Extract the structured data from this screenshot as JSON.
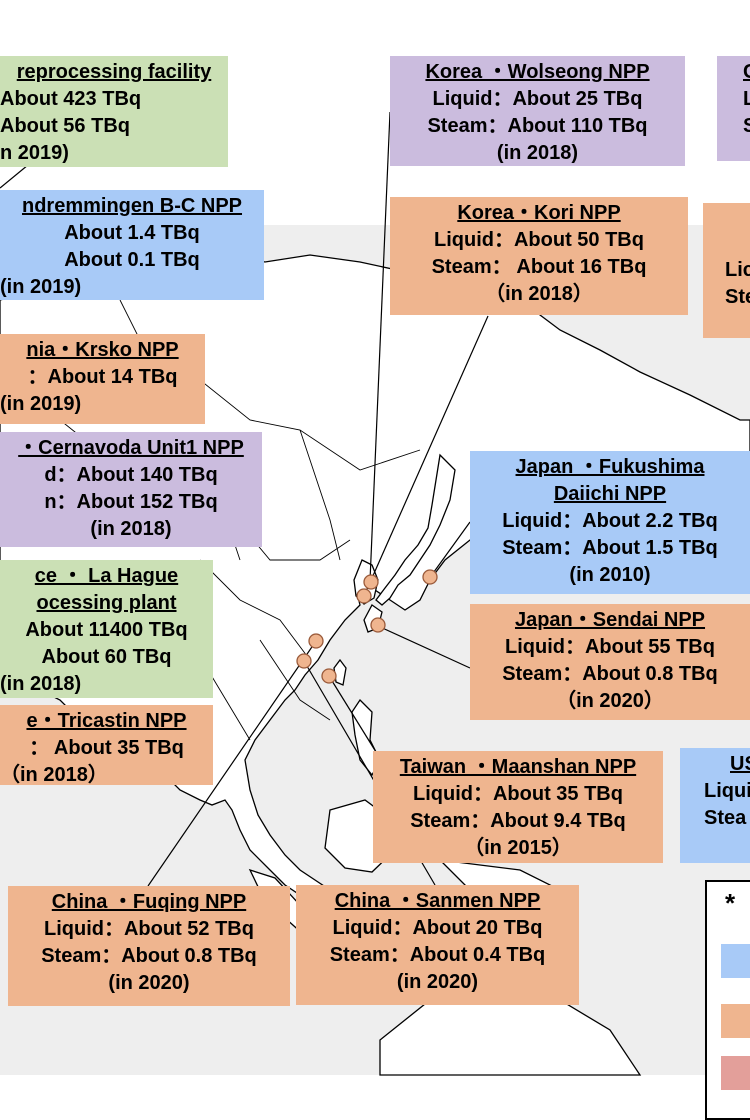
{
  "colors": {
    "purple": "#cbbcde",
    "blue": "#a8caf7",
    "orange": "#efb58f",
    "green": "#cbe0b5",
    "marker": "#efb58f",
    "land": "#ffffff",
    "sea": "#eeeeee"
  },
  "boxes": {
    "reprocessing": {
      "title": "reprocessing facility",
      "line1": "About 423 TBq",
      "line2": "About 56 TBq",
      "year": "n 2019)"
    },
    "gundremmingen": {
      "title": "ndremmingen B-C NPP",
      "line1": "About 1.4 TBq",
      "line2": "About 0.1 TBq",
      "year": "(in 2019)"
    },
    "krsko": {
      "title": "nia・Krsko NPP",
      "line1": "：About 14 TBq",
      "year": "(in 2019)"
    },
    "cernavoda": {
      "title": "・Cernavoda Unit1 NPP",
      "line1": "d：About 140 TBq",
      "line2": "n：About 152 TBq",
      "year": "(in 2018)"
    },
    "lahague": {
      "title": "ce ・ La Hague",
      "title2": "ocessing plant",
      "line1": "About 11400 TBq",
      "line2": "About 60 TBq",
      "year": "(in 2018)"
    },
    "tricastin": {
      "title": "e・Tricastin NPP",
      "line1": "：  About 35 TBq",
      "year": "（in 2018）"
    },
    "wolseong": {
      "title": "Korea ・Wolseong NPP",
      "line1": "Liquid：About 25 TBq",
      "line2": "Steam：About 110 TBq",
      "year": "(in 2018)"
    },
    "kori": {
      "title": "Korea・Kori NPP",
      "line1": "Liquid：About 50 TBq",
      "line2": "Steam：  About 16 TBq",
      "year": "（in 2018）"
    },
    "fukushima": {
      "title": "Japan ・Fukushima",
      "title2": "Daiichi NPP",
      "line1": "Liquid：About 2.2 TBq",
      "line2": "Steam：About  1.5 TBq",
      "year": "(in 2010)"
    },
    "sendai": {
      "title": "Japan・Sendai NPP",
      "line1": "Liquid：About 55 TBq",
      "line2": "Steam：About 0.8 TBq",
      "year": "（in 2020）"
    },
    "maanshan": {
      "title": "Taiwan ・Maanshan NPP",
      "line1": "Liquid：About 35 TBq",
      "line2": "Steam：About 9.4 TBq",
      "year": "（in 2015）"
    },
    "fuqing": {
      "title": "China ・Fuqing NPP",
      "line1": "Liquid：About 52 TBq",
      "line2": "Steam：About  0.8 TBq",
      "year": "(in 2020)"
    },
    "sanmen": {
      "title": "China ・Sanmen NPP",
      "line1": "Liquid：About 20 TBq",
      "line2": "Steam：About  0.4 TBq",
      "year": "(in 2020)"
    },
    "topright": {
      "title": "C",
      "line1": "L",
      "line2": "S"
    },
    "rightmid": {
      "title": "",
      "line1": "Lic",
      "line2": "Ste"
    },
    "usa": {
      "title": "US",
      "line1": "Liqui",
      "line2": "Stea"
    }
  },
  "legend": {
    "asterisk": "*"
  }
}
